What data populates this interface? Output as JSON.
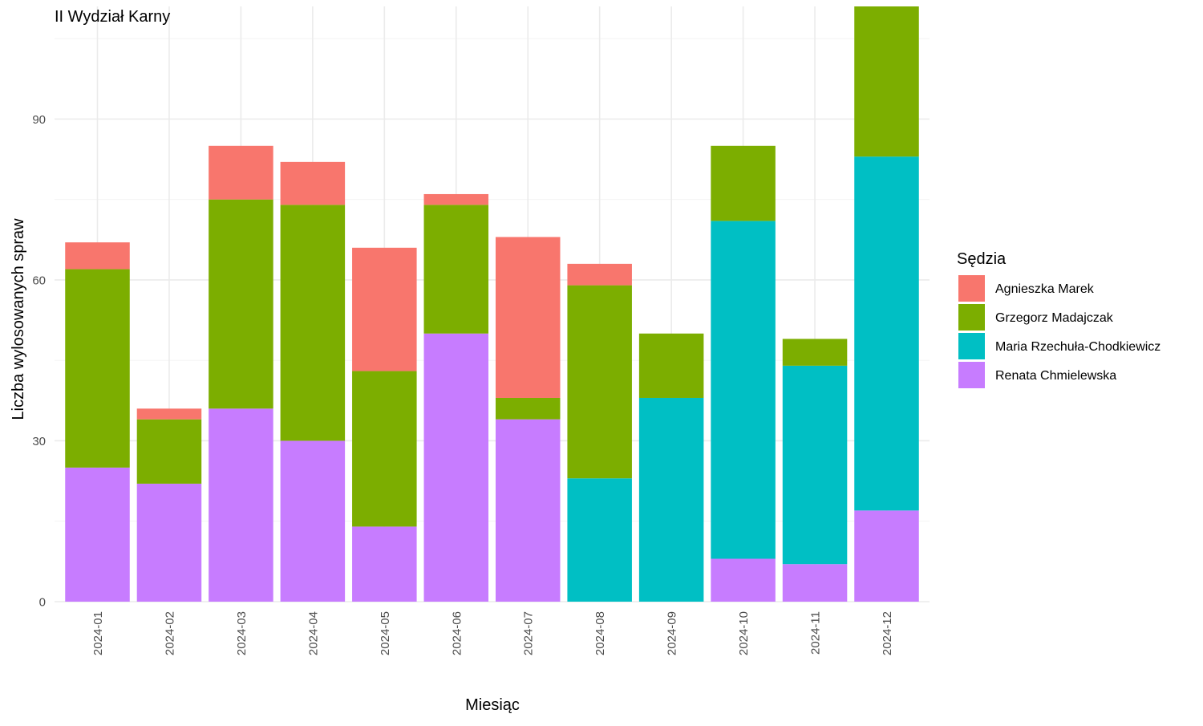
{
  "chart_data": {
    "type": "bar",
    "stacked": true,
    "title": "II Wydział Karny",
    "xlabel": "Miesiąc",
    "ylabel": "Liczba wylosowanych spraw",
    "ylim": [
      0,
      111
    ],
    "yticks": [
      0,
      30,
      60,
      90
    ],
    "grid": true,
    "legend_title": "Sędzia",
    "legend_position": "right",
    "categories": [
      "2024-01",
      "2024-02",
      "2024-03",
      "2024-04",
      "2024-05",
      "2024-06",
      "2024-07",
      "2024-08",
      "2024-09",
      "2024-10",
      "2024-11",
      "2024-12"
    ],
    "series": [
      {
        "name": "Agnieszka Marek",
        "color": "#F8766D",
        "values": [
          5,
          2,
          10,
          8,
          23,
          2,
          30,
          4,
          0,
          0,
          0,
          0
        ]
      },
      {
        "name": "Grzegorz Madajczak",
        "color": "#7CAE00",
        "values": [
          37,
          12,
          39,
          44,
          29,
          24,
          4,
          36,
          12,
          14,
          5,
          28
        ]
      },
      {
        "name": "Maria Rzechuła-Chodkiewicz",
        "color": "#00BFC4",
        "values": [
          0,
          0,
          0,
          0,
          0,
          0,
          0,
          23,
          38,
          63,
          37,
          66
        ]
      },
      {
        "name": "Renata Chmielewska",
        "color": "#C77CFF",
        "values": [
          25,
          22,
          36,
          30,
          14,
          50,
          34,
          0,
          0,
          8,
          7,
          17
        ]
      }
    ]
  }
}
